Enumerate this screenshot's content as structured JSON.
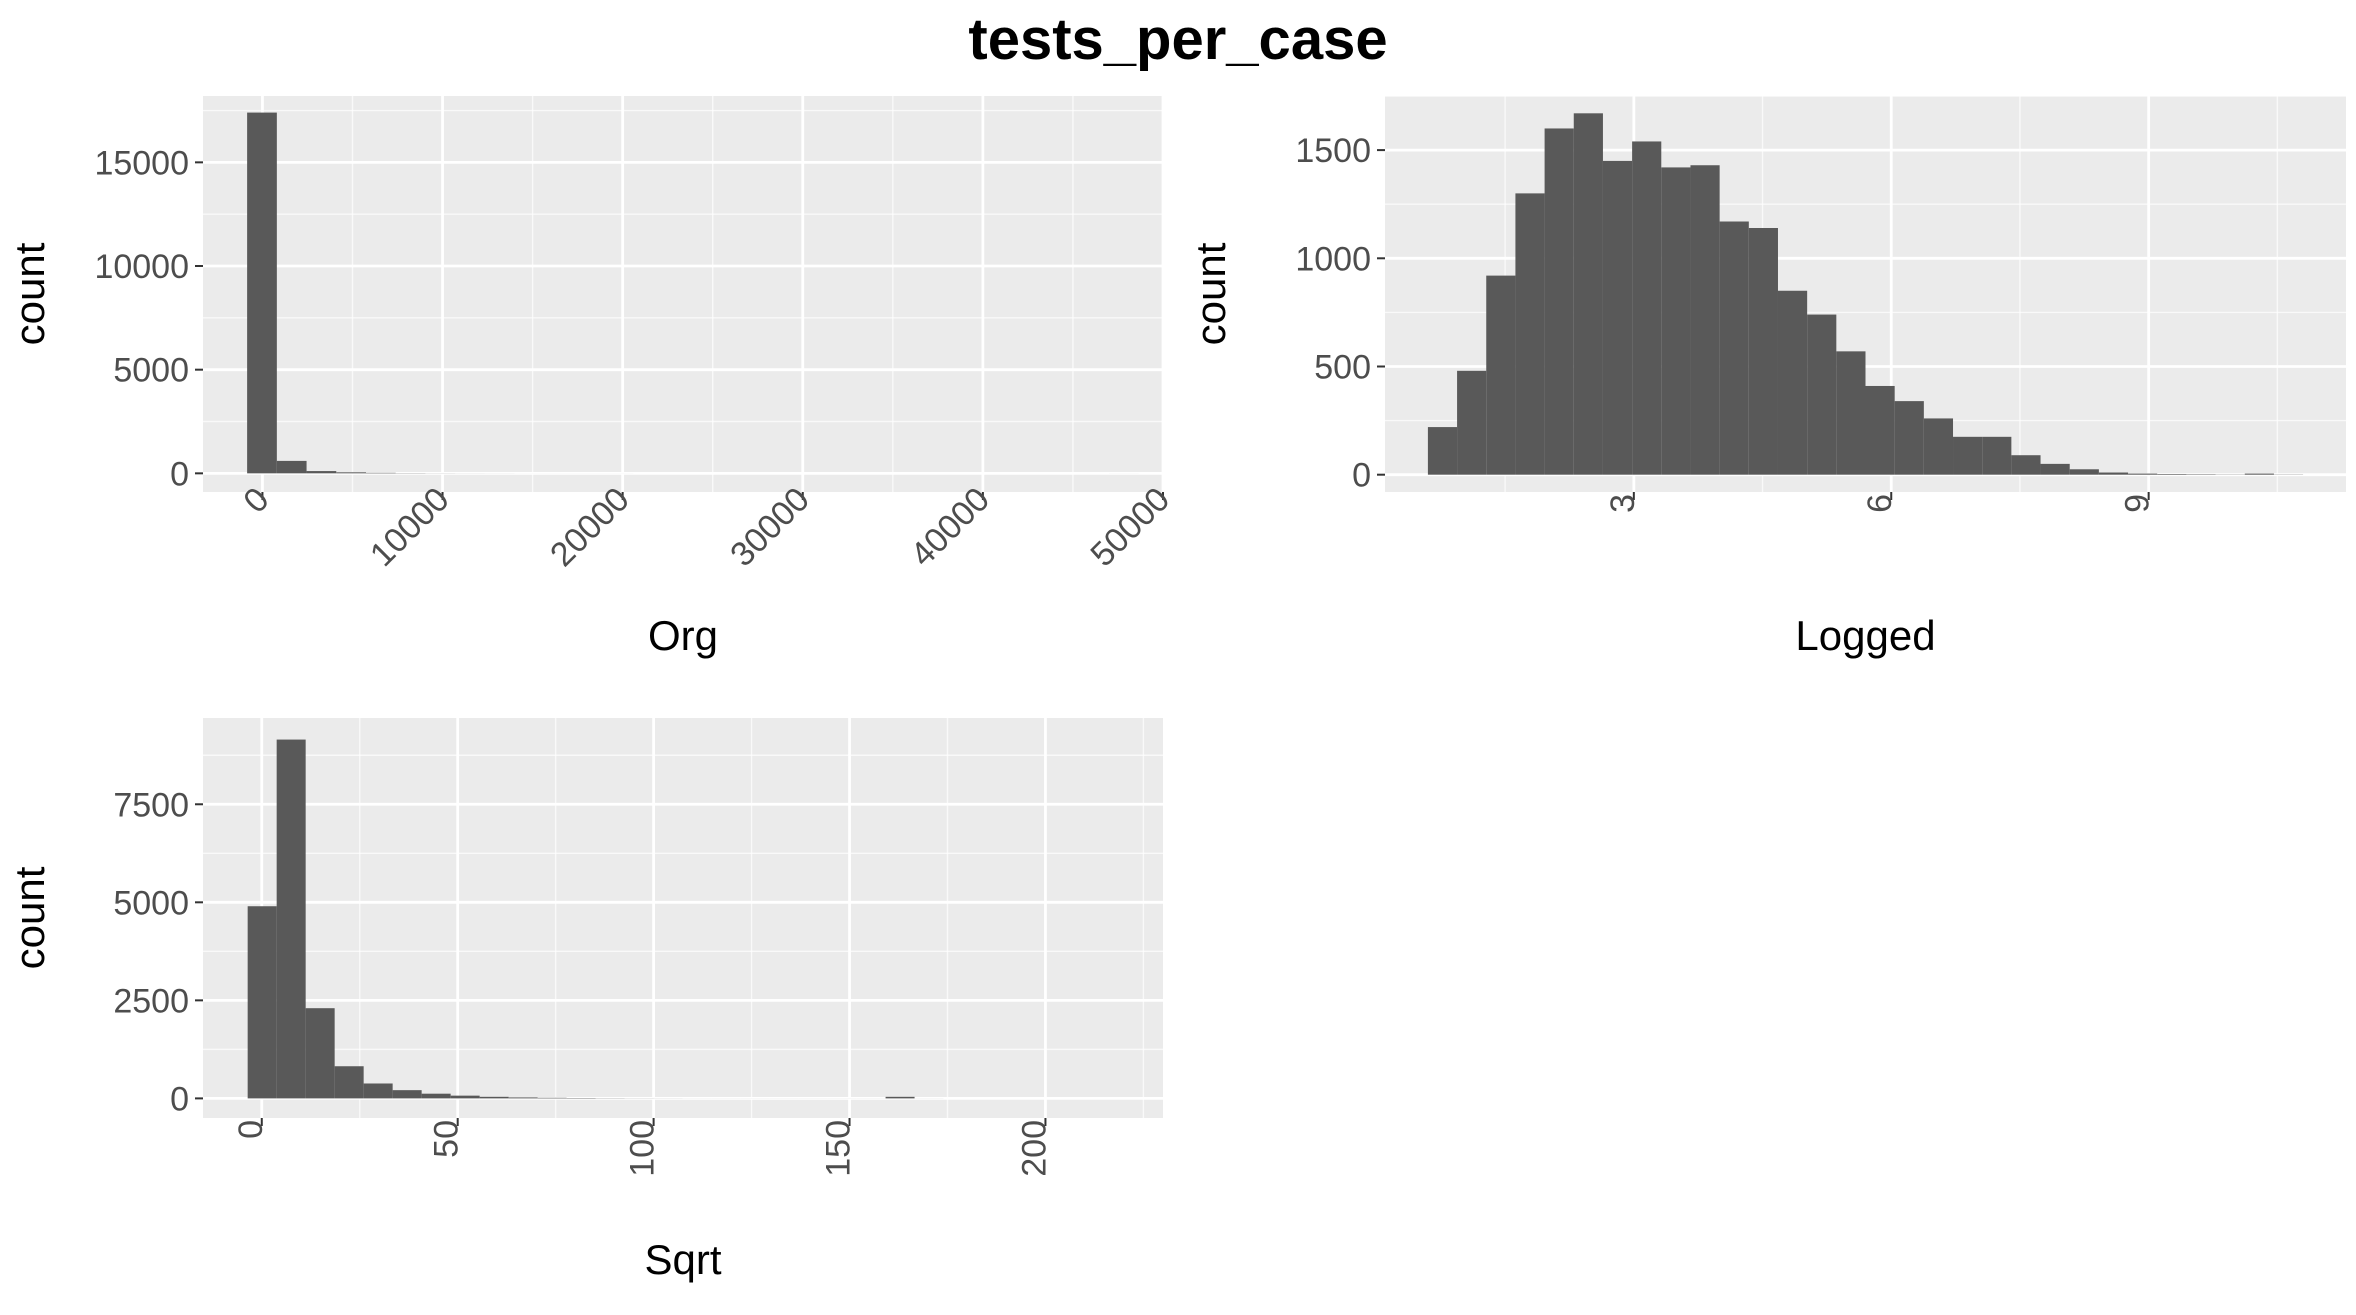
{
  "title": "tests_per_case",
  "colors": {
    "panel": "#ebebeb",
    "grid_major": "#ffffff",
    "bar": "#595959",
    "tick_text": "#4d4d4d",
    "axis_text": "#000000"
  },
  "chart_data": [
    {
      "type": "bar",
      "xlabel": "Org",
      "ylabel": "count",
      "xlim": [
        -3300,
        50000
      ],
      "ylim": [
        -900,
        18200
      ],
      "x_ticks": [
        0,
        10000,
        20000,
        30000,
        40000,
        50000
      ],
      "x_tick_labels": [
        "0",
        "10000",
        "20000",
        "30000",
        "40000",
        "50000"
      ],
      "y_ticks": [
        0,
        5000,
        10000,
        15000
      ],
      "y_tick_labels": [
        "0",
        "5000",
        "10000",
        "15000"
      ],
      "grid": true,
      "bin_start": -850,
      "bin_width": 1650,
      "values": [
        17400,
        600,
        110,
        50,
        25,
        10,
        5,
        3,
        2,
        1,
        1,
        1,
        1,
        0,
        0,
        0,
        0,
        0,
        0,
        0,
        0,
        0,
        0,
        0,
        0,
        0,
        0,
        0,
        0,
        1
      ]
    },
    {
      "type": "bar",
      "xlabel": "Logged",
      "ylabel": "count",
      "xlim": [
        0.1,
        11.3
      ],
      "ylim": [
        -80,
        1750
      ],
      "x_ticks": [
        3,
        6,
        9
      ],
      "x_tick_labels": [
        "3",
        "6",
        "9"
      ],
      "y_ticks": [
        0,
        500,
        1000,
        1500
      ],
      "y_tick_labels": [
        "0",
        "500",
        "1000",
        "1500"
      ],
      "grid": true,
      "bin_start": 0.6,
      "bin_width": 0.34,
      "values": [
        220,
        480,
        920,
        1300,
        1600,
        1670,
        1450,
        1540,
        1420,
        1430,
        1170,
        1140,
        850,
        740,
        570,
        410,
        340,
        260,
        175,
        175,
        90,
        50,
        25,
        10,
        5,
        3,
        2,
        1,
        5,
        1
      ]
    },
    {
      "type": "bar",
      "xlabel": "Sqrt",
      "ylabel": "count",
      "xlim": [
        -15,
        230
      ],
      "ylim": [
        -500,
        9700
      ],
      "x_ticks": [
        0,
        50,
        100,
        150,
        200
      ],
      "x_tick_labels": [
        "0",
        "50",
        "100",
        "150",
        "200"
      ],
      "y_ticks": [
        0,
        2500,
        5000,
        7500
      ],
      "y_tick_labels": [
        "0",
        "2500",
        "5000",
        "7500"
      ],
      "grid": true,
      "bin_start": -3.6,
      "bin_width": 7.4,
      "values": [
        4900,
        9150,
        2300,
        820,
        380,
        210,
        120,
        70,
        40,
        25,
        15,
        10,
        5,
        3,
        2,
        1,
        1,
        1,
        1,
        1,
        1,
        1,
        40,
        1,
        0,
        0,
        0,
        0,
        0,
        0
      ]
    }
  ]
}
